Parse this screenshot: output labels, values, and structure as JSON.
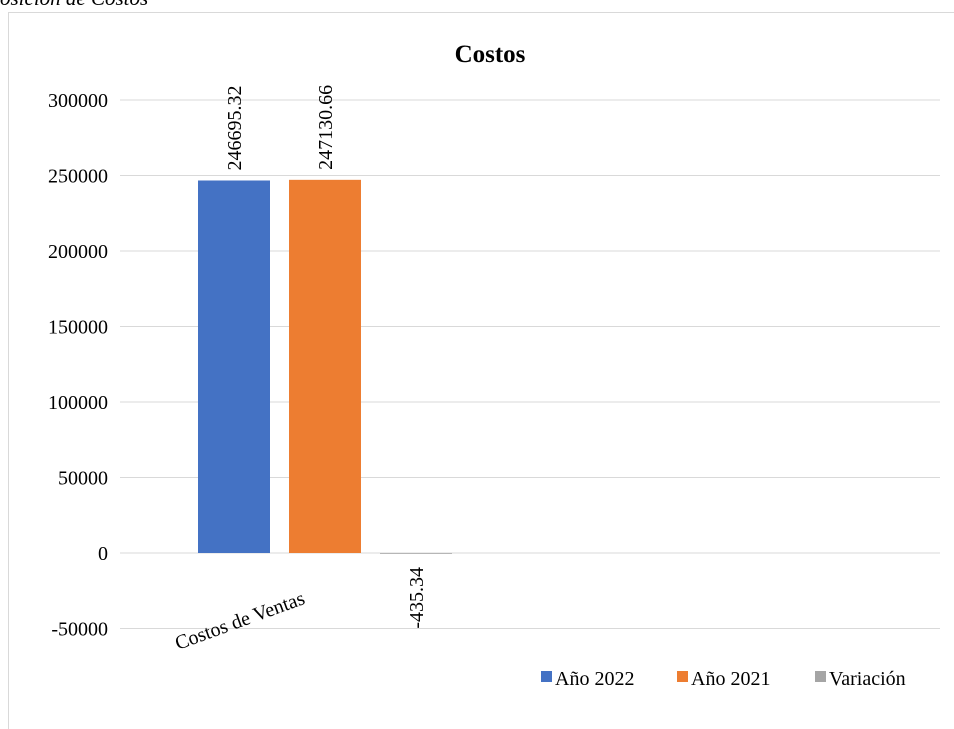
{
  "caption": "osición de Costos",
  "chart_data": {
    "type": "bar",
    "title": "Costos",
    "categories": [
      "Costos de Ventas"
    ],
    "series": [
      {
        "name": "Año 2022",
        "values": [
          246695.32
        ],
        "color": "#4472C4"
      },
      {
        "name": "Año 2021",
        "values": [
          247130.66
        ],
        "color": "#ED7D31"
      },
      {
        "name": "Variación",
        "values": [
          -435.34
        ],
        "color": "#A5A5A5"
      }
    ],
    "data_labels": [
      "246695.32",
      "247130.66",
      "-435.34"
    ],
    "y_ticks": [
      "300000",
      "250000",
      "200000",
      "150000",
      "100000",
      "50000",
      "0",
      "-50000"
    ],
    "ylim": [
      -50000,
      300000
    ],
    "grid": true,
    "legend_position": "bottom-right"
  }
}
